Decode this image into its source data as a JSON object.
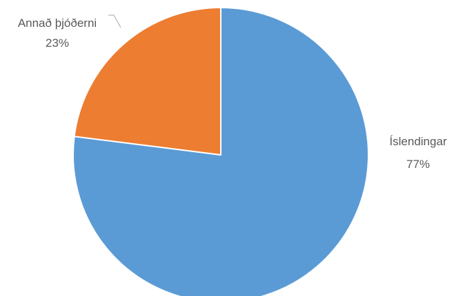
{
  "chart_data": {
    "type": "pie",
    "title": "",
    "categories": [
      "Íslendingar",
      "Annað þjóðerni"
    ],
    "values": [
      77,
      23
    ],
    "value_labels": [
      "77%",
      "23%"
    ],
    "colors": [
      "#5B9BD5",
      "#ED7D31"
    ],
    "start_angle_deg": 0,
    "direction": "clockwise",
    "legend": "none"
  }
}
